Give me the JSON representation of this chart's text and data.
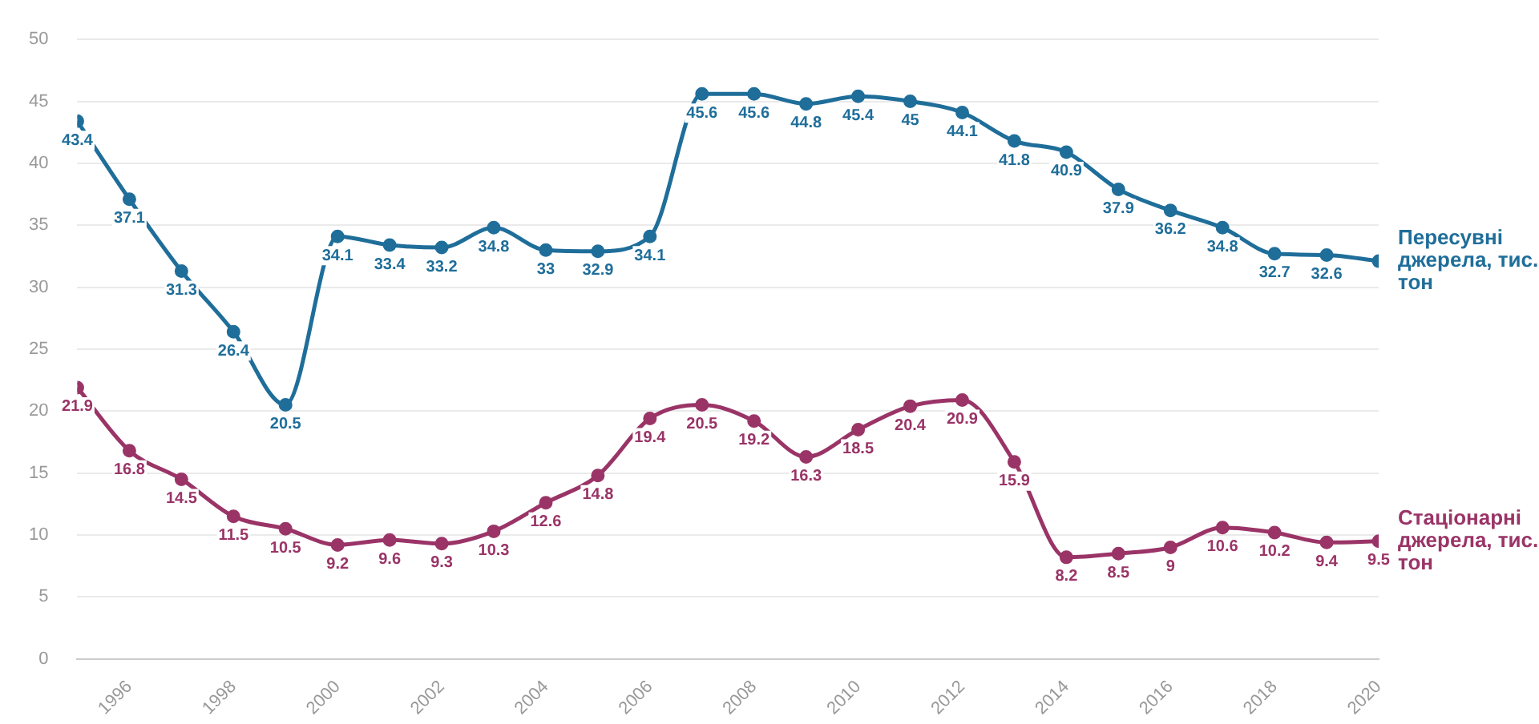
{
  "chart_data": {
    "type": "line",
    "x": [
      1995,
      1996,
      1997,
      1998,
      1999,
      2000,
      2001,
      2002,
      2003,
      2004,
      2005,
      2006,
      2007,
      2008,
      2009,
      2010,
      2011,
      2012,
      2013,
      2014,
      2015,
      2016,
      2017,
      2018,
      2019,
      2020
    ],
    "series": [
      {
        "name": "Пересувні джерела, тис. тон",
        "color": "#1f6e9a",
        "values": [
          43.4,
          37.1,
          31.3,
          26.4,
          20.5,
          34.1,
          33.4,
          33.2,
          34.8,
          33,
          32.9,
          34.1,
          45.6,
          45.6,
          44.8,
          45.4,
          45,
          44.1,
          41.8,
          40.9,
          37.9,
          36.2,
          34.8,
          32.7,
          32.6,
          32.1
        ],
        "value_labels": [
          "43.4",
          "37.1",
          "31.3",
          "26.4",
          "20.5",
          "34.1",
          "33.4",
          "33.2",
          "34.8",
          "33",
          "32.9",
          "34.1",
          "45.6",
          "45.6",
          "44.8",
          "45.4",
          "45",
          "44.1",
          "41.8",
          "40.9",
          "37.9",
          "36.2",
          "34.8",
          "32.7",
          "32.6",
          null
        ]
      },
      {
        "name": "Стаціонарні джерела, тис. тон",
        "color": "#9a3467",
        "values": [
          21.9,
          16.8,
          14.5,
          11.5,
          10.5,
          9.2,
          9.6,
          9.3,
          10.3,
          12.6,
          14.8,
          19.4,
          20.5,
          19.2,
          16.3,
          18.5,
          20.4,
          20.9,
          15.9,
          8.2,
          8.5,
          9,
          10.6,
          10.2,
          9.4,
          9.5
        ],
        "value_labels": [
          "21.9",
          "16.8",
          "14.5",
          "11.5",
          "10.5",
          "9.2",
          "9.6",
          "9.3",
          "10.3",
          "12.6",
          "14.8",
          "19.4",
          "20.5",
          "19.2",
          "16.3",
          "18.5",
          "20.4",
          "20.9",
          "15.9",
          "8.2",
          "8.5",
          "9",
          "10.6",
          "10.2",
          "9.4",
          "9.5"
        ]
      }
    ],
    "xlim": [
      1995,
      2020
    ],
    "xticks": [
      1996,
      1998,
      2000,
      2002,
      2004,
      2006,
      2008,
      2010,
      2012,
      2014,
      2016,
      2018,
      2020
    ],
    "ylim": [
      0,
      50
    ],
    "yticks": [
      0,
      5,
      10,
      15,
      20,
      25,
      30,
      35,
      40,
      45,
      50
    ],
    "grid": "y",
    "legend": false,
    "marker": "circle",
    "line_style": "solid"
  }
}
